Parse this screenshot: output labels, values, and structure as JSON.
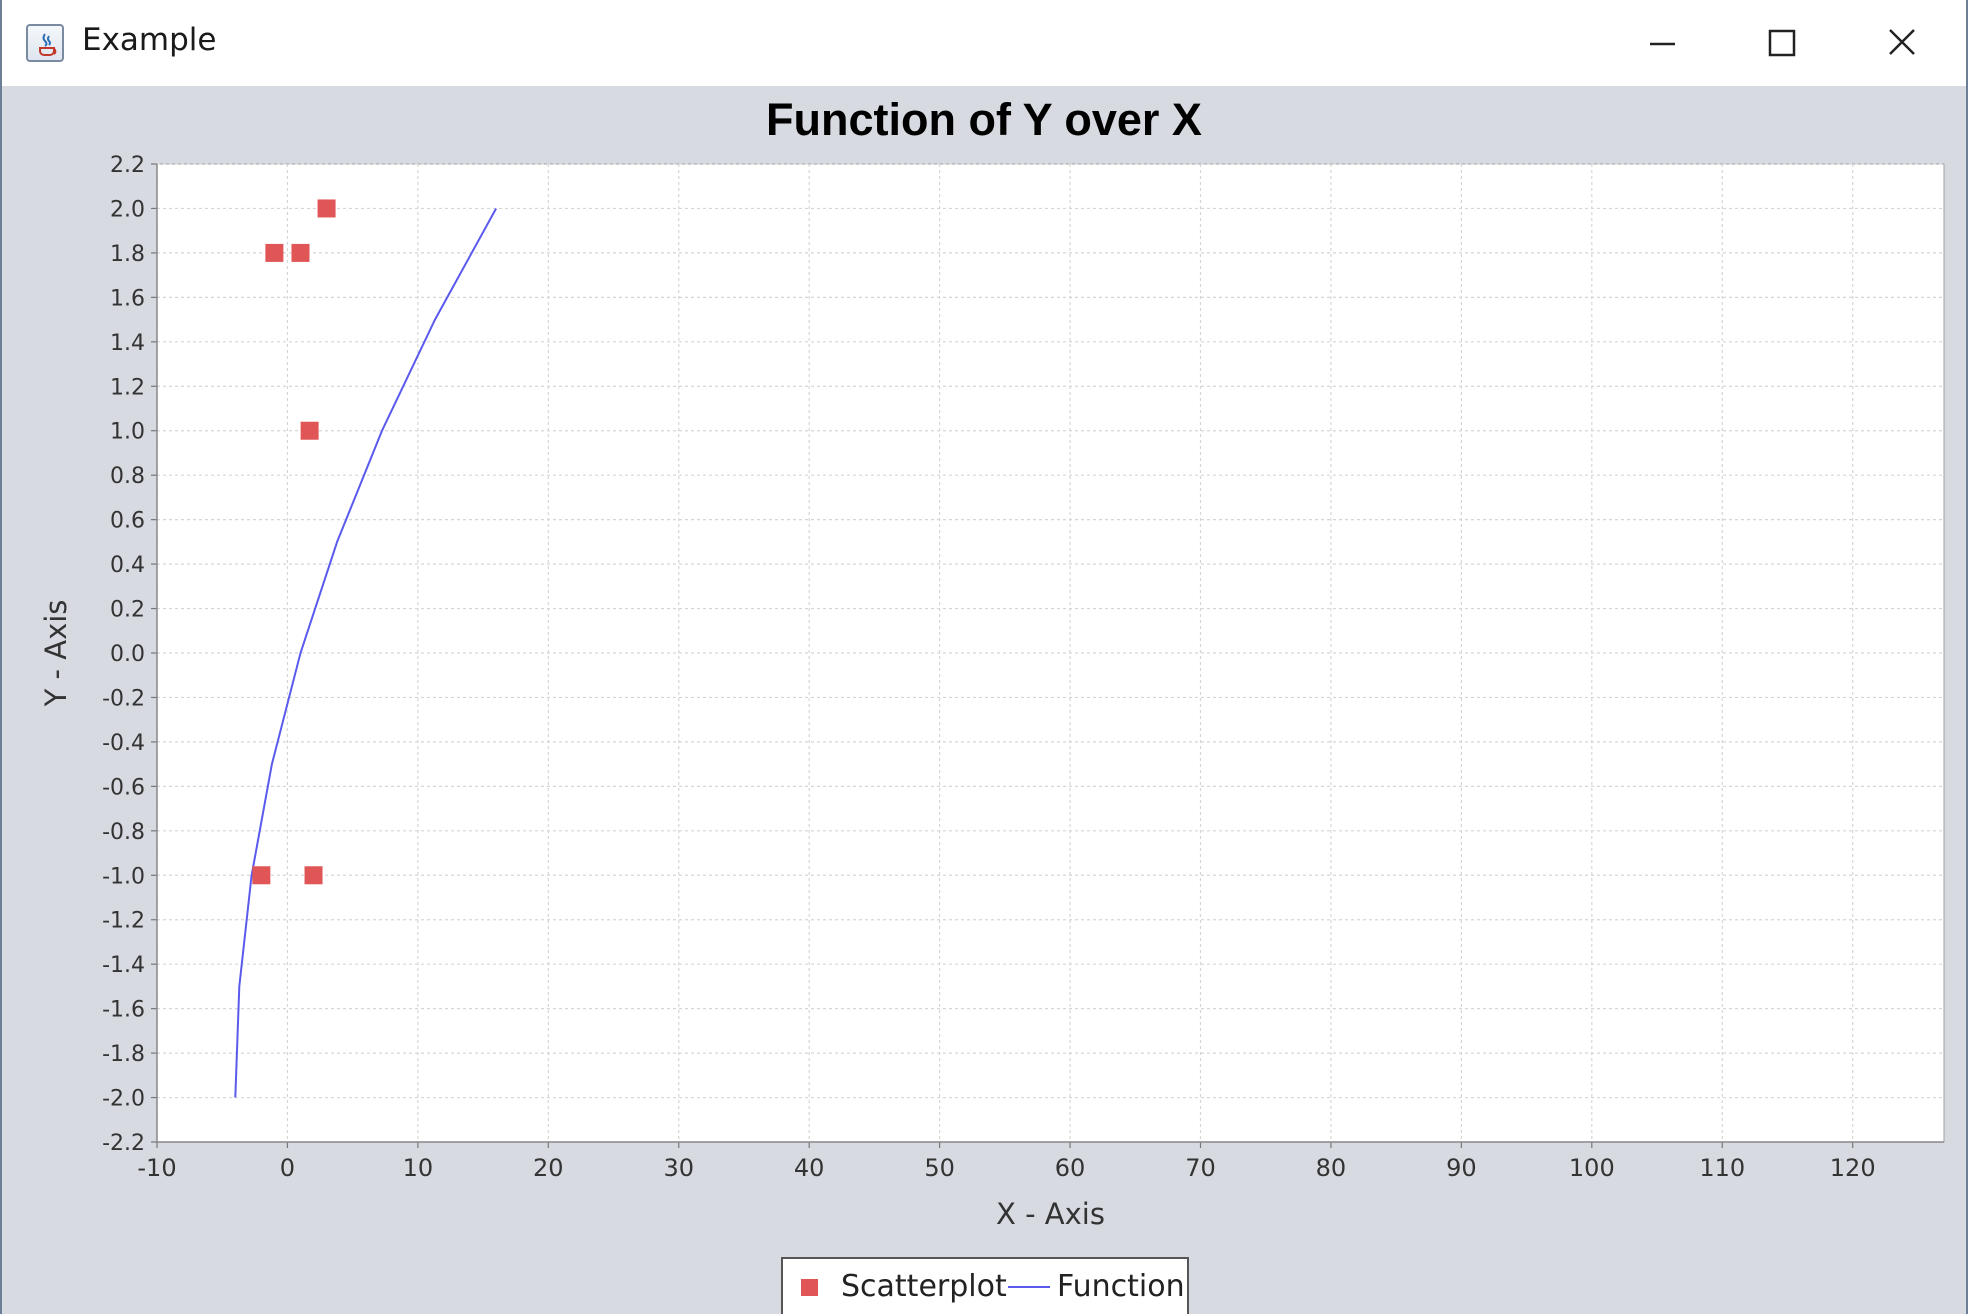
{
  "window": {
    "title": "Example",
    "icon": "java-cup-icon",
    "controls": [
      "minimize-icon",
      "maximize-icon",
      "close-icon"
    ]
  },
  "chart_data": {
    "type": "scatter",
    "title": "Function of Y over X",
    "xlabel": "X - Axis",
    "ylabel": "Y - Axis",
    "xlim": [
      -10,
      127
    ],
    "ylim": [
      -2.2,
      2.2
    ],
    "x_ticks": [
      -10,
      0,
      10,
      20,
      30,
      40,
      50,
      60,
      70,
      80,
      90,
      100,
      110,
      120
    ],
    "y_ticks": [
      -2.2,
      -2.0,
      -1.8,
      -1.6,
      -1.4,
      -1.2,
      -1.0,
      -0.8,
      -0.6,
      -0.4,
      -0.2,
      0.0,
      0.2,
      0.4,
      0.6,
      0.8,
      1.0,
      1.2,
      1.4,
      1.6,
      1.8,
      2.0,
      2.2
    ],
    "grid": true,
    "legend_position": "bottom-center",
    "series": [
      {
        "name": "Scatterplot",
        "type": "scatter",
        "marker": "square",
        "color": "#e05555",
        "points": [
          [
            3,
            2.0
          ],
          [
            -1,
            1.8
          ],
          [
            1,
            1.8
          ],
          [
            1.7,
            1.0
          ],
          [
            -2,
            -1.0
          ],
          [
            2,
            -1.0
          ]
        ]
      },
      {
        "name": "Function",
        "type": "line",
        "color": "#5a5aee",
        "points": [
          [
            -4,
            -2.0
          ],
          [
            -3.69,
            -1.5
          ],
          [
            -2.75,
            -1.0
          ],
          [
            -1.19,
            -0.5
          ],
          [
            1,
            0.0
          ],
          [
            3.81,
            0.5
          ],
          [
            7.25,
            1.0
          ],
          [
            11.31,
            1.5
          ],
          [
            16,
            2.0
          ]
        ]
      }
    ]
  },
  "legend": {
    "items": [
      "Scatterplot",
      "Function"
    ]
  }
}
